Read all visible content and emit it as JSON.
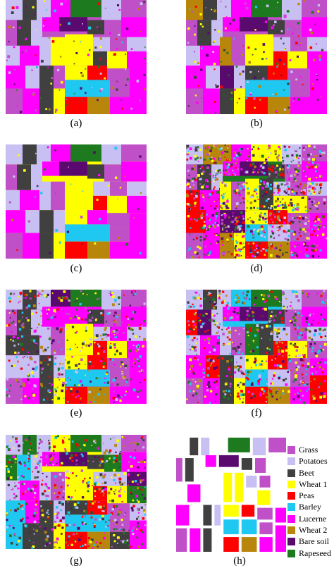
{
  "classes": [
    {
      "name": "Grass",
      "color": "#c050c8"
    },
    {
      "name": "Potatoes",
      "color": "#c8bff2"
    },
    {
      "name": "Beet",
      "color": "#404040"
    },
    {
      "name": "Wheat 1",
      "color": "#ffff00"
    },
    {
      "name": "Peas",
      "color": "#ff0000"
    },
    {
      "name": "Barley",
      "color": "#1ec8f0"
    },
    {
      "name": "Lucerne",
      "color": "#ff00ff"
    },
    {
      "name": "Wheat 2",
      "color": "#b8860b"
    },
    {
      "name": "Bare soil",
      "color": "#5a0a6e"
    },
    {
      "name": "Rapeseed",
      "color": "#1e7a1e"
    }
  ],
  "panels": [
    {
      "id": "a",
      "caption": "(a)",
      "dominant": "#c050c8",
      "noise": 0.08
    },
    {
      "id": "b",
      "caption": "(b)",
      "dominant": "#c050c8",
      "noise": 0.1
    },
    {
      "id": "c",
      "caption": "(c)",
      "dominant": "#ffff00",
      "noise": 0.03
    },
    {
      "id": "d",
      "caption": "(d)",
      "dominant": "#1e7a1e",
      "noise": 0.55
    },
    {
      "id": "e",
      "caption": "(e)",
      "dominant": "#ff00ff",
      "noise": 0.3
    },
    {
      "id": "f",
      "caption": "(f)",
      "dominant": "#1ec8f0",
      "noise": 0.4
    },
    {
      "id": "g",
      "caption": "(g)",
      "dominant": "#ffff00",
      "noise": 0.35
    },
    {
      "id": "h",
      "caption": "(h)",
      "dominant": "#ffffff",
      "noise": 0.0
    }
  ]
}
